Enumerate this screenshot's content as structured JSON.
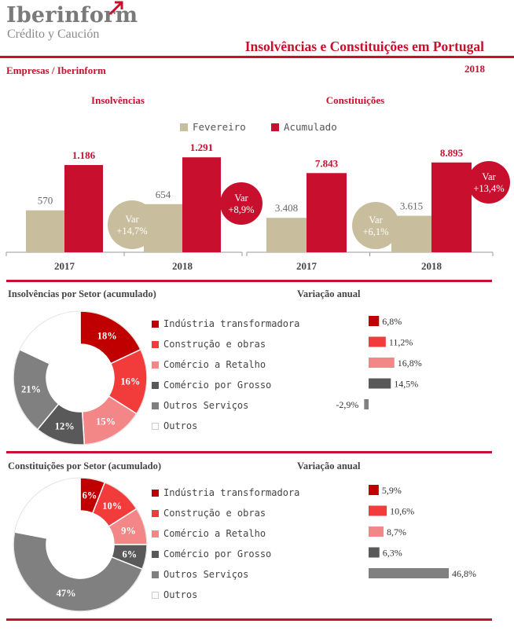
{
  "header": {
    "logo_main": "Iberinform",
    "logo_sub": "Crédito y Caución",
    "title": "Insolvências e Constituições em Portugal",
    "source": "Empresas / Iberinform",
    "year": "2018"
  },
  "colors": {
    "brand_red": "#c8102e",
    "fevereiro": "#c8bd9c",
    "acumulado": "#c8102e",
    "sector_industria": "#c00000",
    "sector_construcao": "#f23c3c",
    "sector_comercio_retalho": "#f38686",
    "sector_comercio_grosso": "#595959",
    "sector_outros_servicos": "#808080",
    "sector_outros": "#ffffff"
  },
  "legend": {
    "fevereiro": "Fevereiro",
    "acumulado": "Acumulado"
  },
  "var_bubbles": {
    "insolvencias_fevereiro": "Var +14,7%",
    "insolvencias_acumulado": "Var +8,9%",
    "constituicoes_fevereiro": "Var +6,1%",
    "constituicoes_acumulado": "Var +13,4%"
  },
  "sectors_section": {
    "insolvencias_title": "Insolvências por Setor (acumulado)",
    "constituicoes_title": "Constituições por Setor (acumulado)",
    "variacao_title": "Variação anual"
  },
  "chart_data": [
    {
      "type": "bar",
      "title": "Insolvências",
      "categories": [
        "2017",
        "2018"
      ],
      "series": [
        {
          "name": "Fevereiro",
          "values": [
            570,
            654
          ],
          "labels": [
            "570",
            "654"
          ]
        },
        {
          "name": "Acumulado",
          "values": [
            1186,
            1291
          ],
          "labels": [
            "1.186",
            "1.291"
          ]
        }
      ],
      "ylim": [
        0,
        1400
      ]
    },
    {
      "type": "bar",
      "title": "Constituições",
      "categories": [
        "2017",
        "2018"
      ],
      "series": [
        {
          "name": "Fevereiro",
          "values": [
            3408,
            3615
          ],
          "labels": [
            "3.408",
            "3.615"
          ]
        },
        {
          "name": "Acumulado",
          "values": [
            7843,
            8895
          ],
          "labels": [
            "7.843",
            "8.895"
          ]
        }
      ],
      "ylim": [
        0,
        10200
      ]
    },
    {
      "type": "pie",
      "title": "Insolvências por Setor (acumulado)",
      "slices": [
        {
          "name": "Indústria transformadora",
          "value": 18,
          "label": "18%",
          "color": "#c00000"
        },
        {
          "name": "Construção e obras",
          "value": 16,
          "label": "16%",
          "color": "#f23c3c"
        },
        {
          "name": "Comércio a Retalho",
          "value": 15,
          "label": "15%",
          "color": "#f38686"
        },
        {
          "name": "Comércio por Grosso",
          "value": 12,
          "label": "12%",
          "color": "#595959"
        },
        {
          "name": "Outros Serviços",
          "value": 21,
          "label": "21%",
          "color": "#808080"
        },
        {
          "name": "Outros",
          "value": 18,
          "label": "",
          "color": "#ffffff"
        }
      ]
    },
    {
      "type": "bar",
      "title": "Variação anual",
      "orientation": "horizontal",
      "categories": [
        "Indústria transformadora",
        "Construção e obras",
        "Comércio a Retalho",
        "Comércio por Grosso",
        "Outros Serviços"
      ],
      "values": [
        6.8,
        11.2,
        16.8,
        14.5,
        -2.9
      ],
      "labels": [
        "6,8%",
        "11,2%",
        "16,8%",
        "14,5%",
        "-2,9%"
      ],
      "colors": [
        "#c00000",
        "#f23c3c",
        "#f38686",
        "#595959",
        "#808080"
      ]
    },
    {
      "type": "pie",
      "title": "Constituições por Setor (acumulado)",
      "slices": [
        {
          "name": "Indústria transformadora",
          "value": 6,
          "label": "6%",
          "color": "#c00000"
        },
        {
          "name": "Construção e obras",
          "value": 10,
          "label": "10%",
          "color": "#f23c3c"
        },
        {
          "name": "Comércio a Retalho",
          "value": 9,
          "label": "9%",
          "color": "#f38686"
        },
        {
          "name": "Comércio por Grosso",
          "value": 6,
          "label": "6%",
          "color": "#595959"
        },
        {
          "name": "Outros Serviços",
          "value": 47,
          "label": "47%",
          "color": "#808080"
        },
        {
          "name": "Outros",
          "value": 22,
          "label": "",
          "color": "#ffffff"
        }
      ]
    },
    {
      "type": "bar",
      "title": "Variação anual",
      "orientation": "horizontal",
      "categories": [
        "Indústria transformadora",
        "Construção e obras",
        "Comércio a Retalho",
        "Comércio por Grosso",
        "Outros Serviços"
      ],
      "values": [
        5.9,
        10.6,
        8.7,
        6.3,
        46.8
      ],
      "labels": [
        "5,9%",
        "10,6%",
        "8,7%",
        "6,3%",
        "46,8%"
      ],
      "colors": [
        "#c00000",
        "#f23c3c",
        "#f38686",
        "#595959",
        "#808080"
      ]
    }
  ]
}
